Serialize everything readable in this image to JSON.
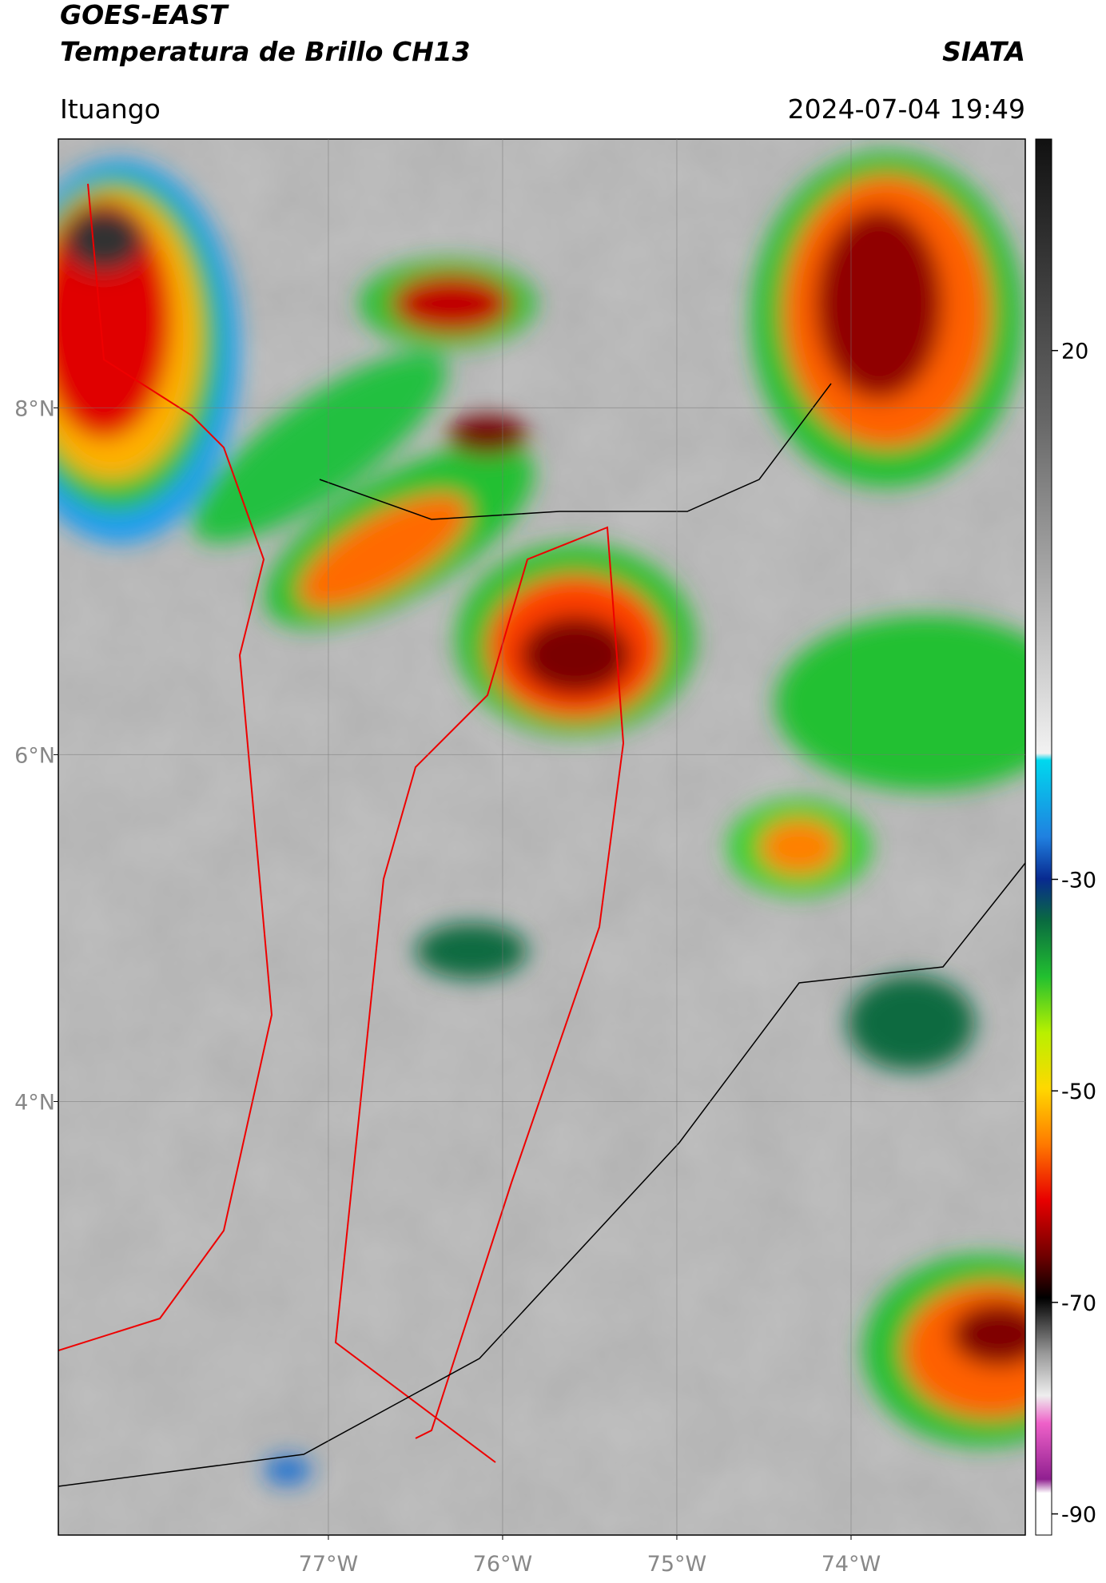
{
  "header": {
    "title": "GOES-EAST",
    "subtitle": "Temperatura de Brillo CH13",
    "source": "SIATA",
    "location": "Ituango",
    "datetime": "2024-07-04 19:49"
  },
  "map": {
    "xlim": [
      -78.55,
      -73.0
    ],
    "ylim": [
      1.5,
      9.55
    ],
    "xticks": [
      {
        "value": -77,
        "label": "77°W"
      },
      {
        "value": -76,
        "label": "76°W"
      },
      {
        "value": -75,
        "label": "75°W"
      },
      {
        "value": -74,
        "label": "74°W"
      }
    ],
    "yticks": [
      {
        "value": 8,
        "label": "8°N"
      },
      {
        "value": 6,
        "label": "6°N"
      },
      {
        "value": 4,
        "label": "4°N"
      }
    ],
    "grid": true
  },
  "colorbar": {
    "lim": [
      -92,
      40
    ],
    "ticks": [
      20,
      -30,
      -50,
      -70,
      -90
    ]
  }
}
